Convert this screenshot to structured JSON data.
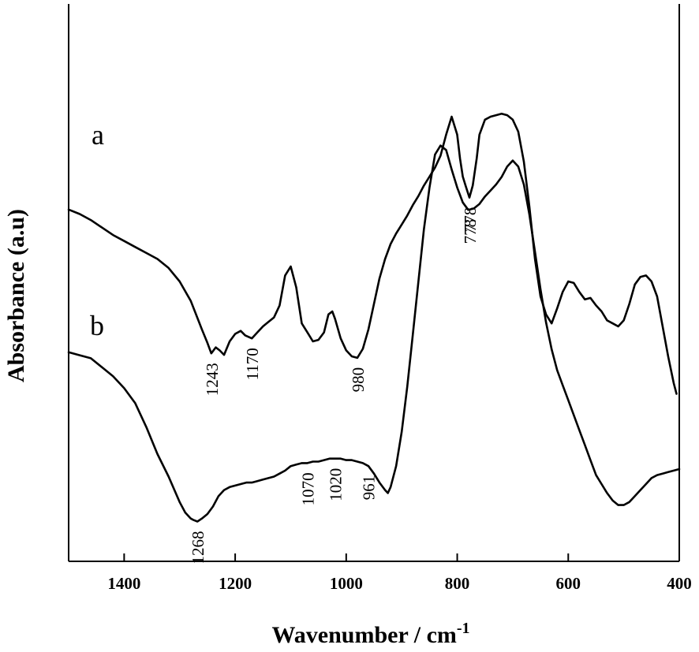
{
  "chart_data": {
    "type": "line",
    "xlabel": "Wavenumber / cm",
    "xlabel_superscript": "-1",
    "ylabel": "Absorbance (a.u)",
    "xlim": [
      1500,
      400
    ],
    "x_reversed": true,
    "xticks": [
      "1400",
      "1200",
      "1000",
      "800",
      "600",
      "400"
    ],
    "yticks_visible": false,
    "grid": false,
    "series": [
      {
        "name": "a",
        "x": [
          1500,
          1480,
          1460,
          1440,
          1420,
          1400,
          1380,
          1360,
          1340,
          1320,
          1300,
          1280,
          1260,
          1250,
          1243,
          1235,
          1228,
          1220,
          1210,
          1200,
          1190,
          1182,
          1170,
          1160,
          1150,
          1140,
          1130,
          1120,
          1110,
          1100,
          1090,
          1080,
          1070,
          1060,
          1050,
          1040,
          1032,
          1025,
          1020,
          1010,
          1000,
          990,
          980,
          970,
          960,
          950,
          940,
          930,
          920,
          910,
          900,
          890,
          880,
          870,
          860,
          850,
          840,
          830,
          820,
          810,
          800,
          795,
          790,
          785,
          778,
          772,
          765,
          760,
          750,
          740,
          730,
          720,
          710,
          700,
          690,
          680,
          670,
          660,
          650,
          640,
          630,
          620,
          610,
          600,
          590,
          580,
          570,
          560,
          550,
          540,
          530,
          520,
          510,
          500,
          490,
          480,
          470,
          460,
          450,
          440,
          430,
          420,
          410,
          405
        ],
        "y": [
          88,
          85,
          81,
          76,
          71,
          67,
          63,
          59,
          55,
          49,
          40,
          27,
          8,
          -1,
          -8,
          -4,
          -6,
          -9,
          0,
          5,
          7,
          4,
          2,
          6,
          10,
          13,
          16,
          24,
          44,
          50,
          36,
          12,
          6,
          0,
          1,
          6,
          18,
          20,
          15,
          2,
          -6,
          -10,
          -11,
          -5,
          8,
          25,
          42,
          55,
          65,
          72,
          78,
          84,
          91,
          97,
          104,
          110,
          116,
          124,
          138,
          150,
          138,
          122,
          110,
          104,
          96,
          104,
          122,
          138,
          148,
          150,
          151,
          152,
          151,
          148,
          140,
          120,
          90,
          55,
          30,
          18,
          12,
          22,
          33,
          40,
          39,
          33,
          28,
          29,
          24,
          20,
          14,
          12,
          10,
          14,
          25,
          38,
          43,
          44,
          40,
          30,
          10,
          -10,
          -28,
          -35
        ]
      },
      {
        "name": "b",
        "x": [
          1500,
          1480,
          1460,
          1440,
          1420,
          1400,
          1380,
          1360,
          1340,
          1320,
          1300,
          1290,
          1280,
          1275,
          1268,
          1260,
          1250,
          1240,
          1230,
          1220,
          1210,
          1200,
          1190,
          1180,
          1170,
          1160,
          1150,
          1140,
          1130,
          1120,
          1110,
          1100,
          1090,
          1080,
          1070,
          1060,
          1050,
          1040,
          1030,
          1020,
          1010,
          1000,
          990,
          980,
          970,
          960,
          950,
          940,
          930,
          925,
          920,
          910,
          900,
          890,
          880,
          870,
          860,
          850,
          840,
          830,
          820,
          810,
          800,
          790,
          780,
          770,
          760,
          750,
          740,
          730,
          720,
          710,
          700,
          690,
          680,
          670,
          660,
          650,
          640,
          630,
          620,
          610,
          600,
          590,
          580,
          570,
          560,
          550,
          540,
          530,
          520,
          510,
          500,
          490,
          480,
          470,
          460,
          450,
          440,
          430,
          420,
          410,
          400
        ],
        "y": [
          98,
          96,
          94,
          88,
          82,
          74,
          64,
          48,
          30,
          15,
          -2,
          -9,
          -13,
          -14,
          -15,
          -13,
          -10,
          -5,
          2,
          6,
          8,
          9,
          10,
          11,
          11,
          12,
          13,
          14,
          15,
          17,
          19,
          22,
          23,
          24,
          24,
          25,
          25,
          26,
          27,
          27,
          27,
          26,
          26,
          25,
          24,
          22,
          17,
          11,
          6,
          4,
          8,
          22,
          45,
          75,
          110,
          145,
          180,
          208,
          230,
          236,
          233,
          220,
          208,
          198,
          193,
          194,
          197,
          202,
          206,
          210,
          215,
          222,
          226,
          222,
          210,
          190,
          165,
          140,
          118,
          100,
          86,
          76,
          66,
          56,
          46,
          36,
          26,
          16,
          10,
          4,
          -1,
          -4,
          -4,
          -2,
          2,
          6,
          10,
          14,
          16,
          17,
          18,
          19,
          20
        ]
      }
    ],
    "series_labels": [
      "a",
      "b"
    ],
    "annotations": [
      {
        "text": "1243",
        "series": "a",
        "x": 1243
      },
      {
        "text": "1170",
        "series": "a",
        "x": 1170
      },
      {
        "text": "980",
        "series": "a",
        "x": 980
      },
      {
        "text": "778",
        "series": "a",
        "x": 778
      },
      {
        "text": "1268",
        "series": "b",
        "x": 1268
      },
      {
        "text": "1070",
        "series": "b",
        "x": 1070
      },
      {
        "text": "1020",
        "series": "b",
        "x": 1020
      },
      {
        "text": "961",
        "series": "b",
        "x": 961
      },
      {
        "text": "778",
        "series": "b",
        "x": 778
      }
    ]
  }
}
